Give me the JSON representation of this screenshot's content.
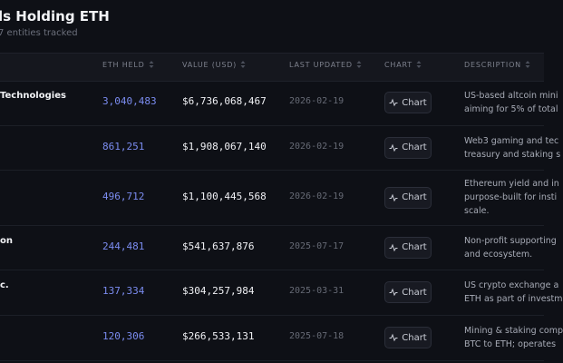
{
  "header": {
    "title": "ls Holding ETH",
    "subtitle": "7 entities tracked"
  },
  "table": {
    "columns": [
      "ETH HELD",
      "VALUE (USD)",
      "LAST UPDATED",
      "CHART",
      "DESCRIPTION"
    ],
    "rows": [
      {
        "name": "Technologies",
        "eth_held": "3,040,483",
        "value_usd": "$6,736,068,467",
        "last_updated": "2026-02-19",
        "chart": "Chart",
        "description": [
          "US-based altcoin mini",
          "aiming for 5% of total"
        ]
      },
      {
        "eth_held": "861,251",
        "value_usd": "$1,908,067,140",
        "last_updated": "2026-02-19",
        "chart": "Chart",
        "description": [
          "Web3 gaming and tec",
          "treasury and staking s"
        ]
      },
      {
        "eth_held": "496,712",
        "value_usd": "$1,100,445,568",
        "last_updated": "2026-02-19",
        "chart": "Chart",
        "description": [
          "Ethereum yield and in",
          "purpose-built for insti",
          "scale."
        ]
      },
      {
        "name": "on",
        "eth_held": "244,481",
        "value_usd": "$541,637,876",
        "last_updated": "2025-07-17",
        "chart": "Chart",
        "description": [
          "Non-profit supporting",
          "and ecosystem."
        ]
      },
      {
        "name": "c.",
        "eth_held": "137,334",
        "value_usd": "$304,257,984",
        "last_updated": "2025-03-31",
        "chart": "Chart",
        "description": [
          "US crypto exchange a",
          "ETH as part of investm"
        ]
      },
      {
        "eth_held": "120,306",
        "value_usd": "$266,533,131",
        "last_updated": "2025-07-18",
        "chart": "Chart",
        "description": [
          "Mining & staking comp",
          "BTC to ETH; operates"
        ]
      }
    ]
  }
}
